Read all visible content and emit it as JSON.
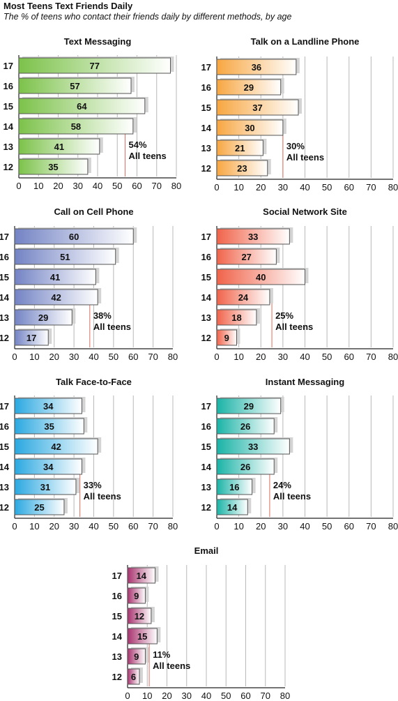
{
  "header": {
    "title": "Most Teens Text Friends Daily",
    "subtitle": "The % of teens who contact their friends daily by different methods, by age"
  },
  "chart_data": [
    {
      "type": "bar",
      "title": "Text Messaging",
      "categories": [
        "17",
        "16",
        "15",
        "14",
        "13",
        "12"
      ],
      "values": [
        77,
        57,
        64,
        58,
        41,
        35
      ],
      "xlim": [
        0,
        80
      ],
      "ticks": [
        0,
        10,
        20,
        30,
        40,
        50,
        60,
        70,
        80
      ],
      "all_teens": 54,
      "all_teens_value_label": "54%",
      "all_teens_label": "All teens",
      "color": "#7cc24a"
    },
    {
      "type": "bar",
      "title": "Talk on a Landline Phone",
      "categories": [
        "17",
        "16",
        "15",
        "14",
        "13",
        "12"
      ],
      "values": [
        36,
        29,
        37,
        30,
        21,
        23
      ],
      "xlim": [
        0,
        80
      ],
      "ticks": [
        0,
        10,
        20,
        30,
        40,
        50,
        60,
        70,
        80
      ],
      "all_teens": 30,
      "all_teens_value_label": "30%",
      "all_teens_label": "All teens",
      "color": "#f7a641"
    },
    {
      "type": "bar",
      "title": "Call on Cell Phone",
      "categories": [
        "17",
        "16",
        "15",
        "14",
        "13",
        "12"
      ],
      "values": [
        60,
        51,
        41,
        42,
        29,
        17
      ],
      "xlim": [
        0,
        80
      ],
      "ticks": [
        0,
        10,
        20,
        30,
        40,
        50,
        60,
        70,
        80
      ],
      "all_teens": 38,
      "all_teens_value_label": "38%",
      "all_teens_label": "All teens",
      "color": "#7383c4"
    },
    {
      "type": "bar",
      "title": "Social Network Site",
      "categories": [
        "17",
        "16",
        "15",
        "14",
        "13",
        "12"
      ],
      "values": [
        33,
        27,
        40,
        24,
        18,
        9
      ],
      "xlim": [
        0,
        80
      ],
      "ticks": [
        0,
        10,
        20,
        30,
        40,
        50,
        60,
        70,
        80
      ],
      "all_teens": 25,
      "all_teens_value_label": "25%",
      "all_teens_label": "All teens",
      "color": "#f0634a"
    },
    {
      "type": "bar",
      "title": "Talk Face-to-Face",
      "categories": [
        "17",
        "16",
        "15",
        "14",
        "13",
        "12"
      ],
      "values": [
        34,
        35,
        42,
        34,
        31,
        25
      ],
      "xlim": [
        0,
        80
      ],
      "ticks": [
        0,
        10,
        20,
        30,
        40,
        50,
        60,
        70,
        80
      ],
      "all_teens": 33,
      "all_teens_value_label": "33%",
      "all_teens_label": "All teens",
      "color": "#2aa8e0"
    },
    {
      "type": "bar",
      "title": "Instant Messaging",
      "categories": [
        "17",
        "16",
        "15",
        "14",
        "13",
        "12"
      ],
      "values": [
        29,
        26,
        33,
        26,
        16,
        14
      ],
      "xlim": [
        0,
        80
      ],
      "ticks": [
        0,
        10,
        20,
        30,
        40,
        50,
        60,
        70,
        80
      ],
      "all_teens": 24,
      "all_teens_value_label": "24%",
      "all_teens_label": "All teens",
      "color": "#1ab3a6"
    },
    {
      "type": "bar",
      "title": "Email",
      "categories": [
        "17",
        "16",
        "15",
        "14",
        "13",
        "12"
      ],
      "values": [
        14,
        9,
        12,
        15,
        9,
        6
      ],
      "xlim": [
        0,
        80
      ],
      "ticks": [
        0,
        10,
        20,
        30,
        40,
        50,
        60,
        70,
        80
      ],
      "all_teens": 11,
      "all_teens_value_label": "11%",
      "all_teens_label": "All teens",
      "color": "#a8336e"
    }
  ]
}
